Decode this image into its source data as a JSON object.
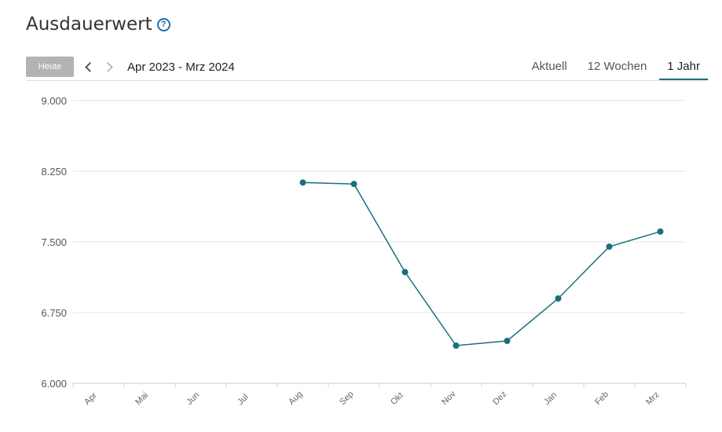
{
  "header": {
    "title": "Ausdauerwert",
    "help_icon": "question-circle-icon"
  },
  "toolbar": {
    "today_label": "Heute",
    "range_label": "Apr 2023 - Mrz 2024",
    "tabs": [
      {
        "label": "Aktuell",
        "active": false
      },
      {
        "label": "12 Wochen",
        "active": false
      },
      {
        "label": "1 Jahr",
        "active": true
      }
    ]
  },
  "colors": {
    "series": "#1a6f7e",
    "grid": "#e3e3e3",
    "accent_tab": "#1a6f7e",
    "help": "#1e6fae"
  },
  "chart_data": {
    "type": "line",
    "categories": [
      "Apr",
      "Mai",
      "Jun",
      "Jul",
      "Aug",
      "Sep",
      "Okt",
      "Nov",
      "Dez",
      "Jan",
      "Feb",
      "Mrz"
    ],
    "series": [
      {
        "values": [
          null,
          null,
          null,
          null,
          8130,
          8115,
          7180,
          6400,
          6450,
          6900,
          7450,
          7610
        ]
      }
    ],
    "y_ticks": [
      "9.000",
      "8.250",
      "7.500",
      "6.750",
      "6.000"
    ],
    "y_tick_values": [
      9000,
      8250,
      7500,
      6750,
      6000
    ],
    "ylim": [
      6000,
      9000
    ],
    "grid": true,
    "legend": "none"
  }
}
